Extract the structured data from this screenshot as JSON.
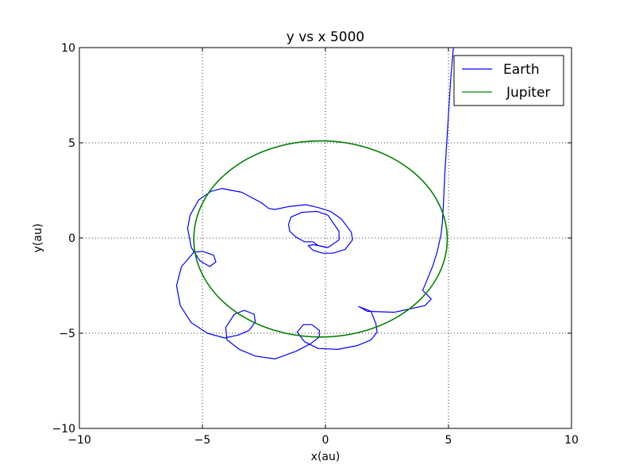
{
  "chart_data": {
    "type": "line",
    "title": "y vs x  5000",
    "xlabel": "x(au)",
    "ylabel": "y(au)",
    "xlim": [
      -10,
      10
    ],
    "ylim": [
      -10,
      10
    ],
    "xticks": [
      -10,
      -5,
      0,
      5,
      10
    ],
    "yticks": [
      -10,
      -5,
      0,
      5,
      10
    ],
    "xtick_labels": [
      "−10",
      "−5",
      "0",
      "5",
      "10"
    ],
    "ytick_labels": [
      "−10",
      "−5",
      "0",
      "5",
      "10"
    ],
    "grid": true,
    "legend_position": "top-right",
    "series": [
      {
        "name": "Earth",
        "color": "#0000ff",
        "points": [
          [
            5.2,
            10.0
          ],
          [
            5.1,
            8.5
          ],
          [
            5.0,
            6.5
          ],
          [
            4.92,
            4.8
          ],
          [
            4.85,
            3.3
          ],
          [
            4.8,
            1.9
          ],
          [
            4.75,
            0.8
          ],
          [
            4.7,
            0.2
          ],
          [
            4.55,
            -0.7
          ],
          [
            4.35,
            -1.5
          ],
          [
            4.1,
            -2.3
          ],
          [
            3.95,
            -2.75
          ],
          [
            4.3,
            -3.2
          ],
          [
            4.05,
            -3.55
          ],
          [
            2.8,
            -3.9
          ],
          [
            1.7,
            -3.85
          ],
          [
            1.35,
            -3.6
          ],
          [
            1.45,
            -3.65
          ],
          [
            1.85,
            -3.85
          ],
          [
            2.05,
            -4.5
          ],
          [
            2.1,
            -4.95
          ],
          [
            1.85,
            -5.35
          ],
          [
            1.3,
            -5.65
          ],
          [
            0.5,
            -5.85
          ],
          [
            -0.3,
            -5.8
          ],
          [
            -0.85,
            -5.45
          ],
          [
            -1.15,
            -4.95
          ],
          [
            -0.9,
            -4.55
          ],
          [
            -0.55,
            -4.55
          ],
          [
            -0.25,
            -4.85
          ],
          [
            -0.25,
            -5.2
          ],
          [
            -0.6,
            -5.55
          ],
          [
            -1.2,
            -5.95
          ],
          [
            -2.05,
            -6.35
          ],
          [
            -2.85,
            -6.2
          ],
          [
            -3.5,
            -5.85
          ],
          [
            -4.0,
            -5.35
          ],
          [
            -4.05,
            -4.7
          ],
          [
            -3.7,
            -4.0
          ],
          [
            -3.3,
            -3.8
          ],
          [
            -2.9,
            -4.0
          ],
          [
            -2.85,
            -4.4
          ],
          [
            -3.1,
            -4.85
          ],
          [
            -3.55,
            -5.1
          ],
          [
            -4.1,
            -5.25
          ],
          [
            -4.8,
            -5.0
          ],
          [
            -5.45,
            -4.45
          ],
          [
            -5.9,
            -3.55
          ],
          [
            -6.05,
            -2.5
          ],
          [
            -5.85,
            -1.5
          ],
          [
            -5.35,
            -0.75
          ],
          [
            -5.0,
            -0.7
          ],
          [
            -4.55,
            -0.9
          ],
          [
            -4.45,
            -1.25
          ],
          [
            -4.7,
            -1.5
          ],
          [
            -5.1,
            -1.2
          ],
          [
            -5.45,
            -0.5
          ],
          [
            -5.6,
            0.5
          ],
          [
            -5.5,
            1.2
          ],
          [
            -5.15,
            2.0
          ],
          [
            -4.65,
            2.45
          ],
          [
            -4.2,
            2.6
          ],
          [
            -3.4,
            2.4
          ],
          [
            -2.6,
            1.85
          ],
          [
            -2.3,
            1.55
          ],
          [
            -2.05,
            1.5
          ],
          [
            -1.5,
            1.65
          ],
          [
            -0.8,
            1.75
          ],
          [
            -0.3,
            1.6
          ],
          [
            0.2,
            1.4
          ],
          [
            0.65,
            1.0
          ],
          [
            1.05,
            0.3
          ],
          [
            1.1,
            -0.1
          ],
          [
            0.8,
            -0.6
          ],
          [
            0.3,
            -0.8
          ],
          [
            -0.1,
            -0.8
          ],
          [
            -0.5,
            -0.65
          ],
          [
            -0.7,
            -0.4
          ],
          [
            -0.5,
            -0.35
          ],
          [
            0.1,
            -0.5
          ],
          [
            0.55,
            -0.1
          ],
          [
            0.55,
            0.35
          ],
          [
            0.1,
            1.2
          ],
          [
            -0.35,
            1.4
          ],
          [
            -0.95,
            1.35
          ],
          [
            -1.4,
            1.1
          ],
          [
            -1.5,
            0.7
          ],
          [
            -1.45,
            0.35
          ],
          [
            -1.2,
            0.05
          ],
          [
            -0.85,
            -0.2
          ],
          [
            -0.5,
            -0.2
          ],
          [
            -0.3,
            -0.4
          ],
          [
            -0.05,
            -0.45
          ]
        ]
      },
      {
        "name": "Jupiter",
        "color": "#008000",
        "circle": {
          "cx": -0.2,
          "cy": -0.05,
          "r": 5.15
        }
      }
    ]
  }
}
